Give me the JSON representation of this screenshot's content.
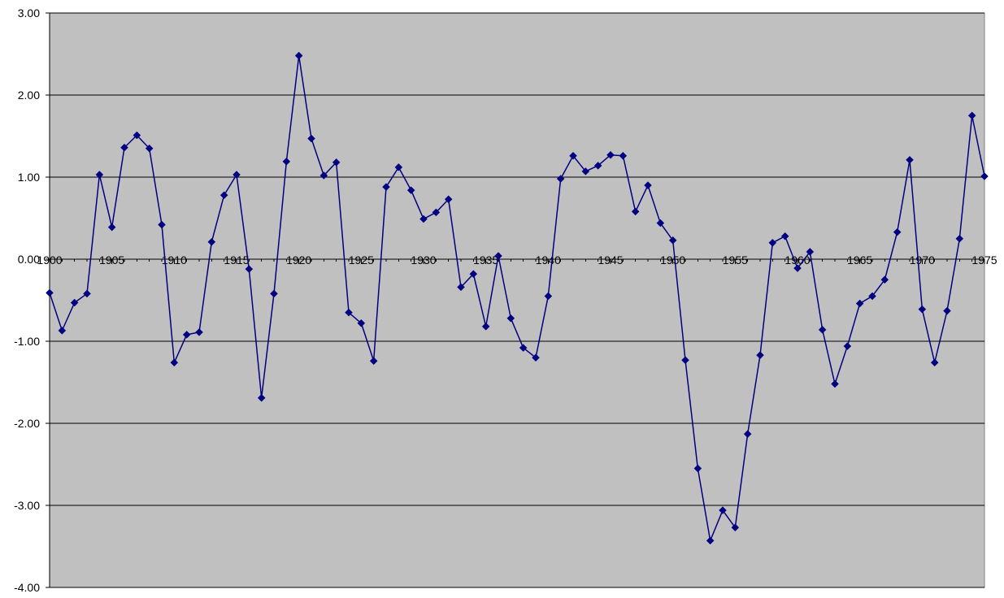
{
  "chart_data": {
    "type": "line",
    "title": "",
    "xlabel": "",
    "ylabel": "",
    "xlim": [
      1900,
      1975
    ],
    "ylim": [
      -4,
      3
    ],
    "grid": "horizontal",
    "legend": "none",
    "x_tick_labels": [
      "1900",
      "1905",
      "1910",
      "1915",
      "1920",
      "1925",
      "1930",
      "1935",
      "1940",
      "1945",
      "1950",
      "1955",
      "1960",
      "1965",
      "1970",
      "1975"
    ],
    "y_tick_labels": [
      "3.00",
      "2.00",
      "1.00",
      "0.00",
      "-1.00",
      "-2.00",
      "-3.00",
      "-4.00"
    ],
    "series": [
      {
        "color": "#000080",
        "marker": "diamond",
        "x": [
          1900,
          1901,
          1902,
          1903,
          1904,
          1905,
          1906,
          1907,
          1908,
          1909,
          1910,
          1911,
          1912,
          1913,
          1914,
          1915,
          1916,
          1917,
          1918,
          1919,
          1920,
          1921,
          1922,
          1923,
          1924,
          1925,
          1926,
          1927,
          1928,
          1929,
          1930,
          1931,
          1932,
          1933,
          1934,
          1935,
          1936,
          1937,
          1938,
          1939,
          1940,
          1941,
          1942,
          1943,
          1944,
          1945,
          1946,
          1947,
          1948,
          1949,
          1950,
          1951,
          1952,
          1953,
          1954,
          1955,
          1956,
          1957,
          1958,
          1959,
          1960,
          1961,
          1962,
          1963,
          1964,
          1965,
          1966,
          1967,
          1968,
          1969,
          1970,
          1971,
          1972,
          1973,
          1974,
          1975
        ],
        "values": [
          -0.41,
          -0.87,
          -0.53,
          -0.42,
          1.03,
          0.39,
          1.36,
          1.51,
          1.35,
          0.42,
          -1.26,
          -0.92,
          -0.89,
          0.21,
          0.78,
          1.03,
          -0.12,
          -1.69,
          -0.42,
          1.19,
          2.48,
          1.47,
          1.02,
          1.18,
          -0.65,
          -0.78,
          -1.24,
          0.88,
          1.12,
          0.84,
          0.49,
          0.57,
          0.73,
          -0.34,
          -0.18,
          -0.82,
          0.04,
          -0.72,
          -1.08,
          -1.2,
          -0.45,
          0.98,
          1.26,
          1.07,
          1.14,
          1.27,
          1.26,
          0.58,
          0.9,
          0.44,
          0.23,
          -1.23,
          -2.55,
          -3.43,
          -3.06,
          -3.27,
          -2.13,
          -1.17,
          0.2,
          0.28,
          -0.11,
          0.09,
          -0.86,
          -1.52,
          -1.06,
          -0.54,
          -0.45,
          -0.25,
          0.33,
          1.21,
          -0.61,
          -1.26,
          -0.63,
          0.25,
          1.75,
          1.01
        ]
      }
    ]
  }
}
